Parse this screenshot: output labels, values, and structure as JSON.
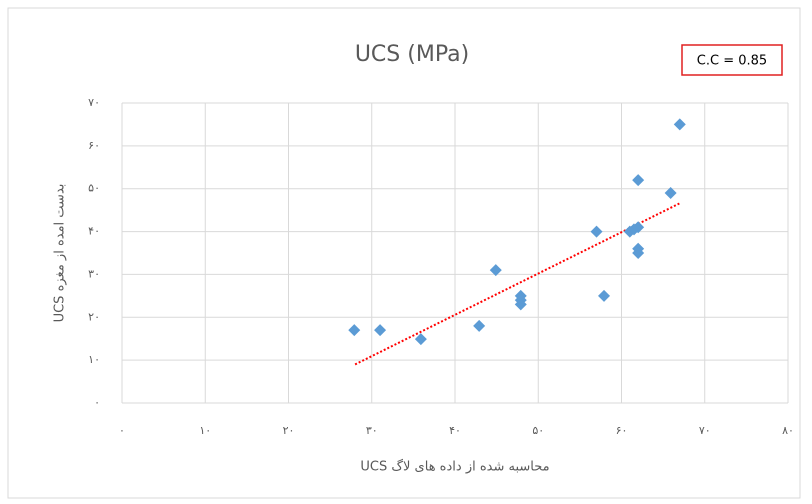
{
  "chart_data": {
    "type": "scatter",
    "title": "UCS (MPa)",
    "annotation": "C.C = 0.85",
    "xlabel": "UCS محاسبه شده از داده های لاگ",
    "ylabel": "UCS بدست امده از مغزه",
    "color": "#5b9bd5",
    "x": [
      27.9,
      31,
      35.9,
      42.9,
      44.9,
      47.9,
      47.9,
      47.9,
      57,
      57.9,
      61,
      61.5,
      62,
      62,
      62,
      62,
      65.9,
      67
    ],
    "values": [
      17,
      17,
      14.9,
      18,
      31,
      25,
      24,
      23,
      40,
      25,
      40,
      40.5,
      41,
      52,
      36,
      35,
      49,
      65
    ],
    "trendline": {
      "color": "#ff0000",
      "x": [
        28,
        67
      ],
      "y": [
        9,
        46.6
      ]
    },
    "xlim": [
      0,
      80
    ],
    "xticks": [
      {
        "value": 0,
        "label": "۰"
      },
      {
        "value": 10,
        "label": "۱۰"
      },
      {
        "value": 20,
        "label": "۲۰"
      },
      {
        "value": 30,
        "label": "۳۰"
      },
      {
        "value": 40,
        "label": "۴۰"
      },
      {
        "value": 50,
        "label": "۵۰"
      },
      {
        "value": 60,
        "label": "۶۰"
      },
      {
        "value": 70,
        "label": "۷۰"
      },
      {
        "value": 80,
        "label": "۸۰"
      }
    ],
    "ylim": [
      0,
      70
    ],
    "yticks": [
      {
        "value": 0,
        "label": "۰"
      },
      {
        "value": 10,
        "label": "۱۰"
      },
      {
        "value": 20,
        "label": "۲۰"
      },
      {
        "value": 30,
        "label": "۳۰"
      },
      {
        "value": 40,
        "label": "۴۰"
      },
      {
        "value": 50,
        "label": "۵۰"
      },
      {
        "value": 60,
        "label": "۶۰"
      },
      {
        "value": 70,
        "label": "۷۰"
      }
    ],
    "grid": true
  }
}
